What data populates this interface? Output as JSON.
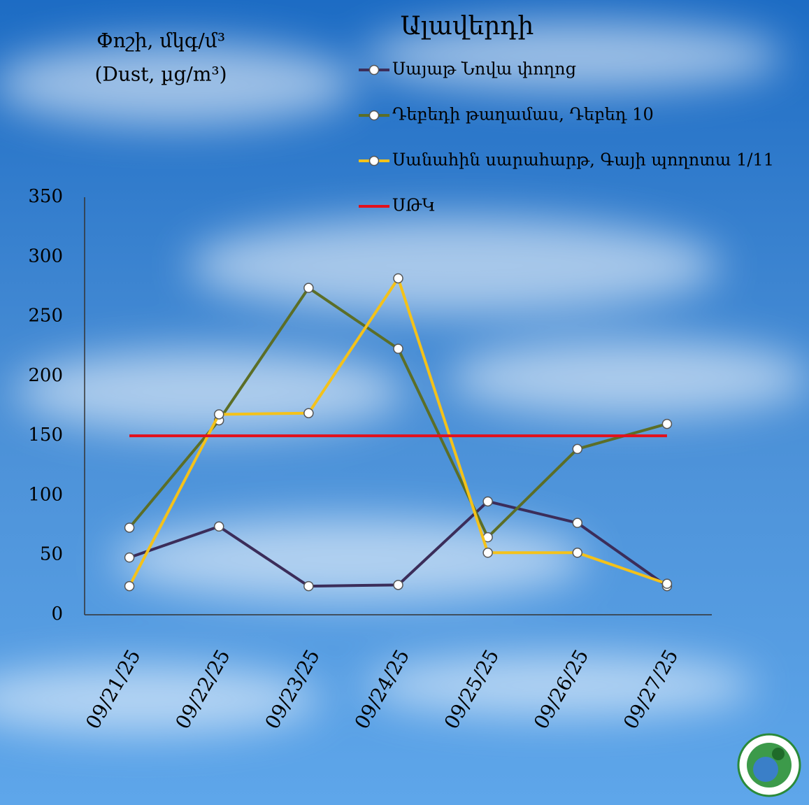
{
  "chart_data": {
    "type": "line",
    "title": "Ալավերդի",
    "y_label": [
      "Փոշի, մկգ/մ³",
      "(Dust, µg/m³)"
    ],
    "categories": [
      "09/21/25",
      "09/22/25",
      "09/23/25",
      "09/24/25",
      "09/25/25",
      "09/26/25",
      "09/27/25"
    ],
    "series": [
      {
        "name": "Սայաթ Նովա փողոց",
        "color": "#3b2d5a",
        "marker": true,
        "values": [
          48,
          74,
          24,
          25,
          95,
          77,
          24
        ]
      },
      {
        "name": "Դեբեդի թաղամաս, Դեբեդ 10",
        "color": "#5b6e27",
        "marker": true,
        "values": [
          73,
          163,
          274,
          223,
          65,
          139,
          160
        ]
      },
      {
        "name": "Սանահին սարահարթ, Գայի պողոտա 1/11",
        "color": "#f4c21a",
        "marker": true,
        "values": [
          24,
          168,
          169,
          282,
          52,
          52,
          26
        ]
      },
      {
        "name": "ՍԹԿ",
        "color": "#e3101c",
        "marker": false,
        "values": [
          150,
          150,
          150,
          150,
          150,
          150,
          150
        ]
      }
    ],
    "ylim": [
      0,
      350
    ],
    "yticks": [
      0,
      50,
      100,
      150,
      200,
      250,
      300,
      350
    ],
    "grid": false
  }
}
